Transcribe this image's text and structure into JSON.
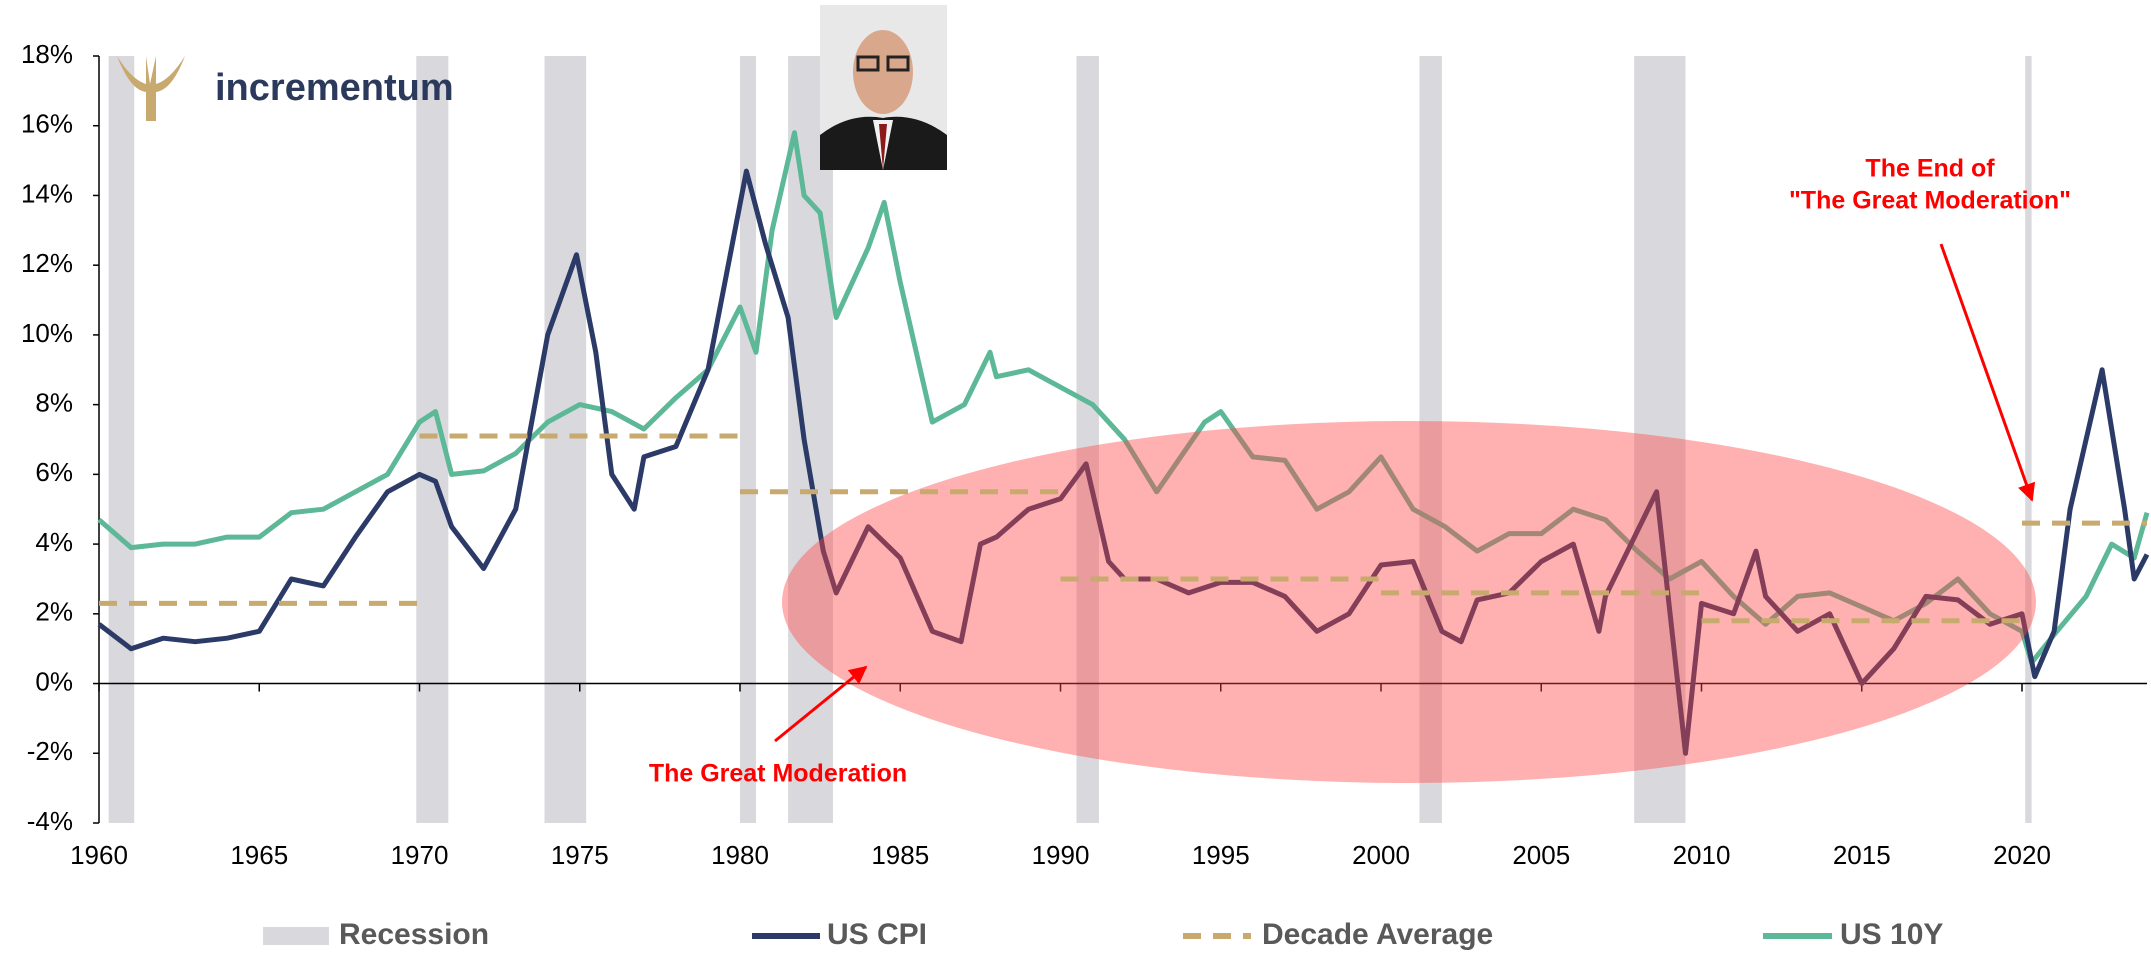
{
  "chart_data": {
    "type": "line",
    "logo": "incrementum",
    "xlim": [
      1960,
      2023.9
    ],
    "xticks": [
      1960,
      1965,
      1970,
      1975,
      1980,
      1985,
      1990,
      1995,
      2000,
      2005,
      2010,
      2015,
      2020
    ],
    "ylim": [
      -4,
      18
    ],
    "yticks": [
      {
        "value": -4,
        "label": "-4%"
      },
      {
        "value": -2,
        "label": "-2%"
      },
      {
        "value": 0,
        "label": "0%"
      },
      {
        "value": 2,
        "label": "2%"
      },
      {
        "value": 4,
        "label": "4%"
      },
      {
        "value": 6,
        "label": "6%"
      },
      {
        "value": 8,
        "label": "8%"
      },
      {
        "value": 10,
        "label": "10%"
      },
      {
        "value": 12,
        "label": "12%"
      },
      {
        "value": 14,
        "label": "14%"
      },
      {
        "value": 16,
        "label": "16%"
      },
      {
        "value": 18,
        "label": "18%"
      }
    ],
    "recessions": {
      "name": "Recession",
      "color": "#d9d9dd",
      "periods": [
        [
          1960.3,
          1961.1
        ],
        [
          1969.9,
          1970.9
        ],
        [
          1973.9,
          1975.2
        ],
        [
          1980.0,
          1980.5
        ],
        [
          1981.5,
          1982.9
        ],
        [
          1990.5,
          1991.2
        ],
        [
          2001.2,
          2001.9
        ],
        [
          2007.9,
          2009.5
        ],
        [
          2020.1,
          2020.3
        ]
      ]
    },
    "series": [
      {
        "name": "US CPI",
        "color": "#2b3a67",
        "x": [
          1960,
          1961,
          1962,
          1963,
          1964,
          1965,
          1966,
          1967,
          1968,
          1969,
          1970,
          1970.5,
          1971,
          1972,
          1973,
          1974,
          1974.9,
          1975.5,
          1976,
          1976.7,
          1977,
          1978,
          1979,
          1980.2,
          1980.8,
          1981.5,
          1982,
          1982.6,
          1983,
          1984,
          1985,
          1986,
          1986.9,
          1987.5,
          1988,
          1989,
          1990,
          1990.8,
          1991.5,
          1992,
          1993,
          1994,
          1995,
          1996,
          1997,
          1998,
          1999,
          2000,
          2001,
          2001.9,
          2002.5,
          2003,
          2004,
          2005,
          2006,
          2006.8,
          2007,
          2008.6,
          2009.5,
          2010,
          2011,
          2011.7,
          2012,
          2013,
          2014,
          2015,
          2016,
          2017,
          2018,
          2019,
          2020,
          2020.4,
          2021,
          2021.5,
          2022.5,
          2023.2,
          2023.5,
          2023.9
        ],
        "values": [
          1.7,
          1.0,
          1.3,
          1.2,
          1.3,
          1.5,
          3.0,
          2.8,
          4.2,
          5.5,
          6.0,
          5.8,
          4.5,
          3.3,
          5.0,
          10.0,
          12.3,
          9.5,
          6.0,
          5.0,
          6.5,
          6.8,
          9.0,
          14.7,
          12.6,
          10.5,
          7.0,
          3.8,
          2.6,
          4.5,
          3.6,
          1.5,
          1.2,
          4.0,
          4.2,
          5.0,
          5.3,
          6.3,
          3.5,
          3.0,
          3.0,
          2.6,
          2.9,
          2.9,
          2.5,
          1.5,
          2.0,
          3.4,
          3.5,
          1.5,
          1.2,
          2.4,
          2.6,
          3.5,
          4.0,
          1.5,
          2.5,
          5.5,
          -2.0,
          2.3,
          2.0,
          3.8,
          2.5,
          1.5,
          2.0,
          0.0,
          1.0,
          2.5,
          2.4,
          1.7,
          2.0,
          0.2,
          1.5,
          5.0,
          9.0,
          5.0,
          3.0,
          3.7
        ]
      },
      {
        "name": "US 10Y",
        "color": "#5cb897",
        "x": [
          1960,
          1961,
          1962,
          1963,
          1964,
          1965,
          1966,
          1967,
          1968,
          1969,
          1970,
          1970.5,
          1971,
          1972,
          1973,
          1974,
          1975,
          1976,
          1977,
          1978,
          1979,
          1980,
          1980.5,
          1981,
          1981.7,
          1982,
          1982.5,
          1983,
          1984,
          1984.5,
          1985,
          1986,
          1987,
          1987.8,
          1988,
          1989,
          1990,
          1991,
          1992,
          1993,
          1994.5,
          1995,
          1996,
          1997,
          1998,
          1999,
          2000,
          2001,
          2002,
          2003,
          2004,
          2005,
          2006,
          2007,
          2008,
          2009,
          2010,
          2011,
          2012,
          2013,
          2014,
          2015,
          2016,
          2017,
          2018,
          2019,
          2020,
          2020.3,
          2021,
          2022,
          2022.8,
          2023.5,
          2023.9
        ],
        "values": [
          4.7,
          3.9,
          4.0,
          4.0,
          4.2,
          4.2,
          4.9,
          5.0,
          5.5,
          6.0,
          7.5,
          7.8,
          6.0,
          6.1,
          6.6,
          7.5,
          8.0,
          7.8,
          7.3,
          8.2,
          9.0,
          10.8,
          9.5,
          13.0,
          15.8,
          14.0,
          13.5,
          10.5,
          12.5,
          13.8,
          11.5,
          7.5,
          8.0,
          9.5,
          8.8,
          9.0,
          8.5,
          8.0,
          7.0,
          5.5,
          7.5,
          7.8,
          6.5,
          6.4,
          5.0,
          5.5,
          6.5,
          5.0,
          4.5,
          3.8,
          4.3,
          4.3,
          5.0,
          4.7,
          3.8,
          3.0,
          3.5,
          2.5,
          1.7,
          2.5,
          2.6,
          2.2,
          1.8,
          2.3,
          3.0,
          2.0,
          1.5,
          0.6,
          1.4,
          2.5,
          4.0,
          3.6,
          4.9
        ]
      }
    ],
    "decade_average": {
      "name": "Decade Average",
      "color": "#c8a96e",
      "segments": [
        {
          "start": 1960,
          "end": 1970,
          "value": 2.3
        },
        {
          "start": 1970,
          "end": 1980,
          "value": 7.1
        },
        {
          "start": 1980,
          "end": 1990,
          "value": 5.5
        },
        {
          "start": 1990,
          "end": 2000,
          "value": 3.0
        },
        {
          "start": 2000,
          "end": 2010,
          "value": 2.6
        },
        {
          "start": 2010,
          "end": 2020,
          "value": 1.8
        },
        {
          "start": 2020,
          "end": 2023.9,
          "value": 4.6
        }
      ]
    },
    "annotations": [
      {
        "lines": [
          "The Great Moderation"
        ]
      },
      {
        "lines": [
          "The End of",
          "\"The Great Moderation\""
        ]
      }
    ]
  }
}
